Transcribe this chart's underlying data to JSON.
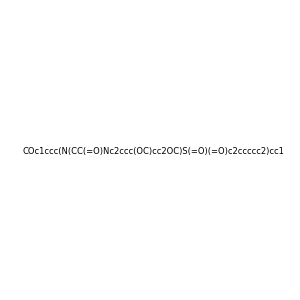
{
  "smiles": "COc1ccc(N(CC(=O)Nc2ccc(OC)cc2OC)S(=O)(=O)c2ccccc2)cc1",
  "image_size": 300,
  "background_color": "#f0f0f0"
}
